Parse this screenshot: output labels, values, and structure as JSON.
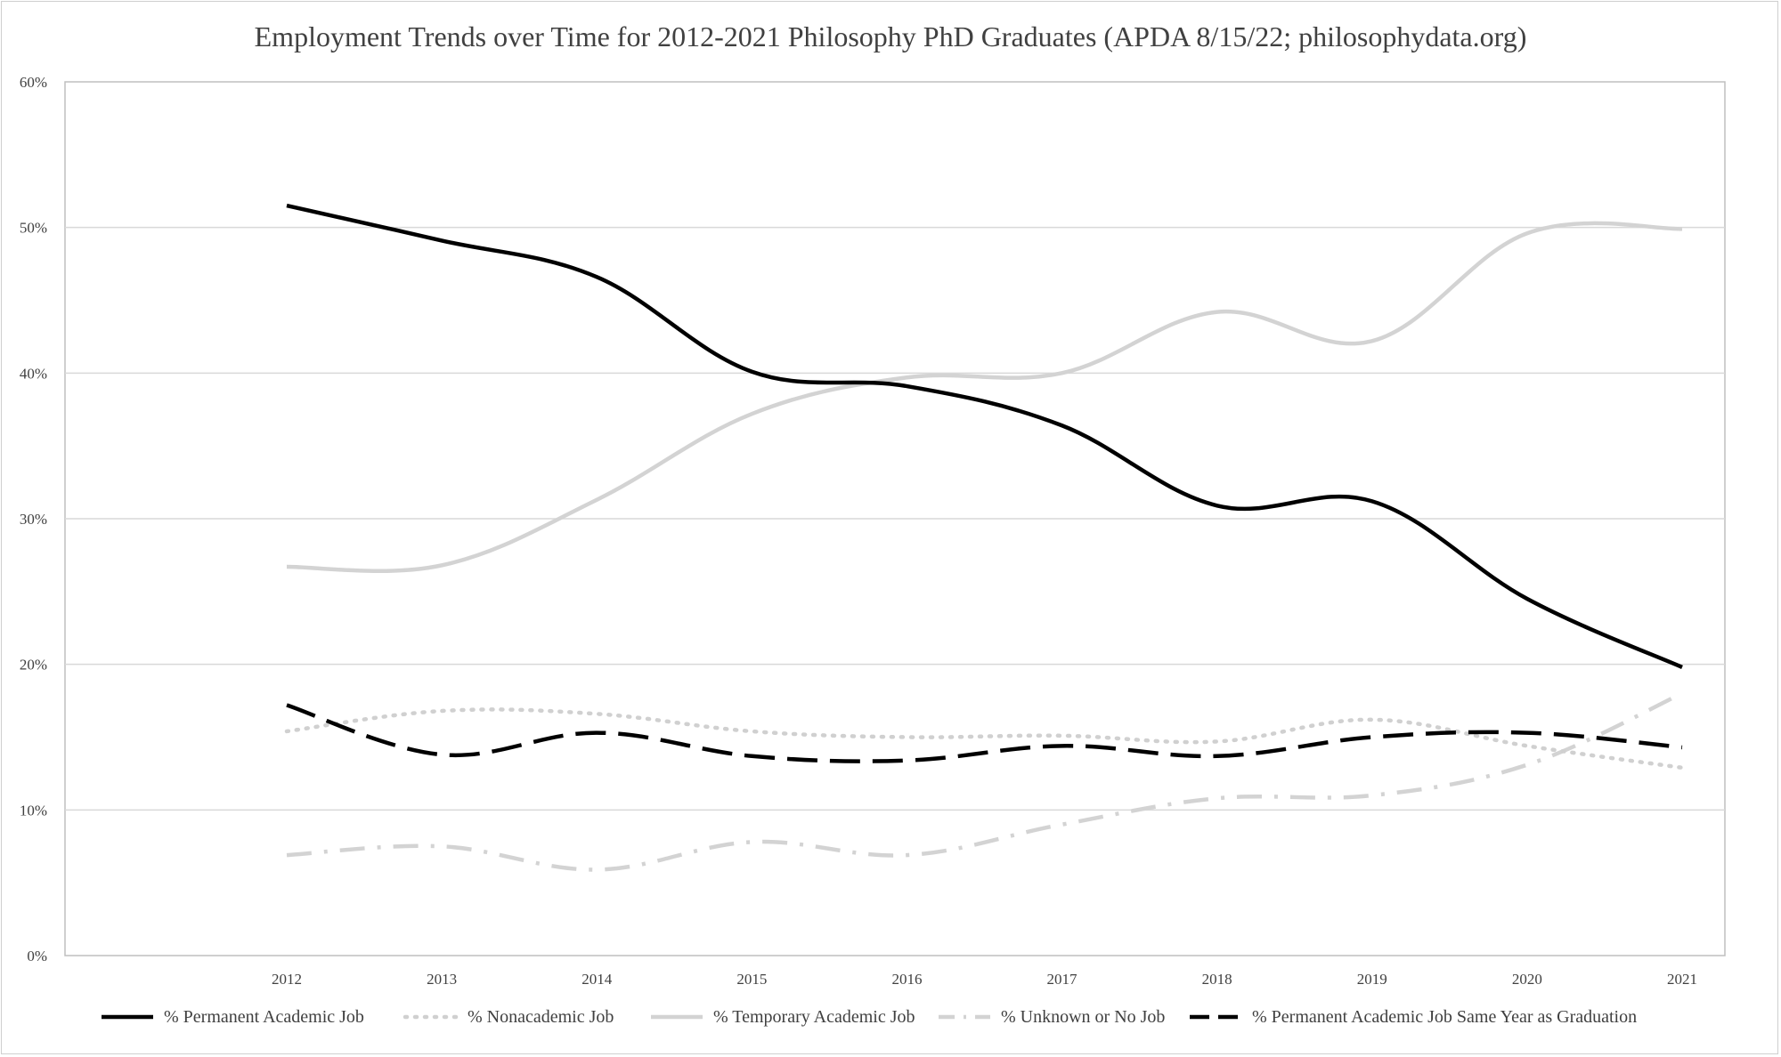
{
  "chart_data": {
    "type": "line",
    "title": "Employment Trends over Time for 2012-2021 Philosophy PhD Graduates (APDA 8/15/22; philosophydata.org)",
    "xlabel": "",
    "ylabel": "",
    "categories": [
      "2012",
      "2013",
      "2014",
      "2015",
      "2016",
      "2017",
      "2018",
      "2019",
      "2020",
      "2021"
    ],
    "ylim": [
      0,
      60
    ],
    "y_ticks": [
      0,
      10,
      20,
      30,
      40,
      50,
      60
    ],
    "y_tick_labels": [
      "0%",
      "10%",
      "20%",
      "30%",
      "40%",
      "50%",
      "60%"
    ],
    "grid": "horizontal",
    "legend_position": "bottom",
    "series": [
      {
        "name": "% Permanent Academic Job",
        "style": "solid",
        "color": "#000000",
        "values": [
          51.5,
          49.1,
          46.6,
          40.1,
          39.1,
          36.4,
          30.9,
          31.2,
          24.5,
          19.8
        ]
      },
      {
        "name": "% Nonacademic Job",
        "style": "dotted",
        "color": "#d0d0d0",
        "values": [
          15.4,
          16.8,
          16.6,
          15.4,
          15.0,
          15.1,
          14.7,
          16.2,
          14.4,
          12.9
        ]
      },
      {
        "name": "% Temporary Academic Job",
        "style": "solid",
        "color": "#d3d3d3",
        "values": [
          26.7,
          26.8,
          31.3,
          37.2,
          39.7,
          40.0,
          44.2,
          42.2,
          49.6,
          49.9
        ]
      },
      {
        "name": "% Unknown or No Job",
        "style": "dashdot",
        "color": "#d3d3d3",
        "values": [
          6.9,
          7.5,
          5.9,
          7.8,
          6.9,
          9.0,
          10.8,
          11.0,
          13.1,
          18.0
        ]
      },
      {
        "name": "% Permanent Academic Job Same Year as Graduation",
        "style": "dashed",
        "color": "#000000",
        "values": [
          17.2,
          13.8,
          15.3,
          13.7,
          13.4,
          14.4,
          13.7,
          15.0,
          15.3,
          14.3
        ]
      }
    ]
  }
}
